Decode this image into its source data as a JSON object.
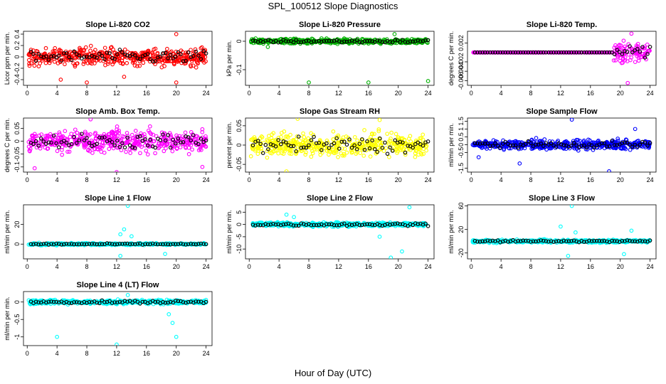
{
  "figure": {
    "title": "SPL_100512  Slope Diagnostics",
    "xlabel": "Hour of Day (UTC)"
  },
  "chart_data": [
    {
      "type": "scatter",
      "title": "Slope Li-820 CO2",
      "ylabel": "Licor ppm per min.",
      "xticks": [
        0,
        4,
        8,
        12,
        16,
        20,
        24
      ],
      "yticks": [
        -0.4,
        -0.2,
        0.0,
        0.2,
        0.4
      ],
      "xlim": [
        -0.5,
        24.8
      ],
      "ylim": [
        -0.5,
        0.45
      ],
      "color": "#ff0000",
      "spread": 0.18,
      "center": 0.0,
      "outliers": [
        [
          8,
          -0.45
        ],
        [
          20,
          0.4
        ],
        [
          20,
          -0.45
        ],
        [
          4.5,
          -0.4
        ],
        [
          13,
          -0.35
        ]
      ]
    },
    {
      "type": "scatter",
      "title": "Slope Li-820 Pressure",
      "ylabel": "kPa per min.",
      "xticks": [
        0,
        4,
        8,
        12,
        16,
        20,
        24
      ],
      "yticks": [
        -0.1,
        0.0
      ],
      "xlim": [
        -0.5,
        24.8
      ],
      "ylim": [
        -0.155,
        0.035
      ],
      "color": "#00b000",
      "spread": 0.01,
      "center": 0.0,
      "outliers": [
        [
          8,
          -0.145
        ],
        [
          16,
          -0.145
        ],
        [
          24,
          -0.14
        ],
        [
          2.5,
          -0.02
        ],
        [
          19.5,
          0.025
        ]
      ]
    },
    {
      "type": "scatter",
      "title": "Slope Li-820 Temp.",
      "ylabel": "degrees C per min.",
      "xticks": [
        0,
        4,
        8,
        12,
        16,
        20,
        24
      ],
      "yticks": [
        -0.006,
        -0.004,
        -0.002,
        0.002
      ],
      "xlim": [
        -0.5,
        24.8
      ],
      "ylim": [
        -0.007,
        0.0045
      ],
      "color": "#ff00ff",
      "spread": 0.0,
      "center": 0.0,
      "noisy_from": 19,
      "noisy_spread": 0.0025,
      "outliers": [
        [
          21,
          -0.0065
        ],
        [
          21.5,
          0.004
        ]
      ]
    },
    {
      "type": "scatter",
      "title": "Slope Amb. Box Temp.",
      "ylabel": "degrees C per min.",
      "xticks": [
        0,
        4,
        8,
        12,
        16,
        20,
        24
      ],
      "yticks": [
        -0.1,
        -0.05,
        0.0,
        0.05
      ],
      "xlim": [
        -0.5,
        24.8
      ],
      "ylim": [
        -0.12,
        0.09
      ],
      "color": "#ff00ff",
      "spread": 0.05,
      "center": 0.0,
      "outliers": [
        [
          8.5,
          0.085
        ],
        [
          12,
          -0.12
        ],
        [
          1,
          -0.105
        ],
        [
          23.5,
          -0.1
        ]
      ]
    },
    {
      "type": "scatter",
      "title": "Slope Gas Stream RH",
      "ylabel": "percent per min.",
      "xticks": [
        0,
        4,
        8,
        12,
        16,
        20,
        24
      ],
      "yticks": [
        -0.05,
        0.0,
        0.05
      ],
      "xlim": [
        -0.5,
        24.8
      ],
      "ylim": [
        -0.07,
        0.07
      ],
      "color": "#ffff00",
      "spread": 0.035,
      "center": 0.0,
      "outliers": [
        [
          6.5,
          0.068
        ],
        [
          17.5,
          0.065
        ],
        [
          5,
          -0.068
        ]
      ]
    },
    {
      "type": "scatter",
      "title": "Slope Sample Flow",
      "ylabel": "ml/min per min.",
      "xticks": [
        0,
        4,
        8,
        12,
        16,
        20,
        24
      ],
      "yticks": [
        -1.5,
        -0.5,
        0.0,
        0.5,
        1.0,
        1.5
      ],
      "xlim": [
        -0.5,
        24.8
      ],
      "ylim": [
        -1.75,
        1.7
      ],
      "color": "#0000ff",
      "spread": 0.35,
      "center": 0.0,
      "outliers": [
        [
          13.5,
          1.6
        ],
        [
          18.5,
          -1.7
        ],
        [
          6.5,
          -1.2
        ],
        [
          22,
          1.0
        ],
        [
          1,
          -0.8
        ]
      ]
    },
    {
      "type": "scatter",
      "title": "Slope Line 1 Flow",
      "ylabel": "ml/min per min.",
      "xticks": [
        0,
        4,
        8,
        12,
        16,
        20,
        24
      ],
      "yticks": [
        0,
        20
      ],
      "xlim": [
        -0.5,
        24.8
      ],
      "ylim": [
        -15,
        40
      ],
      "color": "#00ffff",
      "spread": 1.2,
      "center": 0.0,
      "outliers": [
        [
          13.5,
          39
        ],
        [
          12.5,
          -12
        ],
        [
          13,
          15
        ],
        [
          18.5,
          -10
        ],
        [
          14,
          8
        ],
        [
          12.5,
          10
        ]
      ]
    },
    {
      "type": "scatter",
      "title": "Slope Line 2 Flow",
      "ylabel": "ml/min per min.",
      "xticks": [
        0,
        4,
        8,
        12,
        16,
        20,
        24
      ],
      "yticks": [
        -10,
        -5,
        0,
        5
      ],
      "xlim": [
        -0.5,
        24.8
      ],
      "ylim": [
        -14,
        8
      ],
      "color": "#00ffff",
      "spread": 1.0,
      "center": 0.0,
      "outliers": [
        [
          19,
          -13.5
        ],
        [
          20.5,
          -11
        ],
        [
          21.5,
          7
        ],
        [
          5,
          4
        ],
        [
          6,
          3
        ],
        [
          17.5,
          -5
        ]
      ]
    },
    {
      "type": "scatter",
      "title": "Slope Line 3 Flow",
      "ylabel": "ml/min per min.",
      "xticks": [
        0,
        4,
        8,
        12,
        16,
        20,
        24
      ],
      "yticks": [
        -20,
        20,
        60
      ],
      "xlim": [
        -0.5,
        24.8
      ],
      "ylim": [
        -30,
        62
      ],
      "color": "#00ffff",
      "spread": 3.0,
      "center": 0.0,
      "outliers": [
        [
          13.5,
          60
        ],
        [
          13,
          -25
        ],
        [
          12,
          25
        ],
        [
          20.5,
          -22
        ],
        [
          21.5,
          18
        ],
        [
          14,
          15
        ]
      ]
    },
    {
      "type": "scatter",
      "title": "Slope Line 4 (LT) Flow",
      "ylabel": "ml/min per min.",
      "xticks": [
        0,
        4,
        8,
        12,
        16,
        20,
        24
      ],
      "yticks": [
        -1.0,
        -0.5,
        0.0
      ],
      "xlim": [
        -0.5,
        24.8
      ],
      "ylim": [
        -1.25,
        0.3
      ],
      "color": "#00ffff",
      "spread": 0.07,
      "center": 0.0,
      "outliers": [
        [
          4,
          -1.0
        ],
        [
          12,
          -1.22
        ],
        [
          19.5,
          -0.6
        ],
        [
          20,
          -1.0
        ],
        [
          13.5,
          0.2
        ],
        [
          19,
          -0.35
        ]
      ]
    }
  ]
}
